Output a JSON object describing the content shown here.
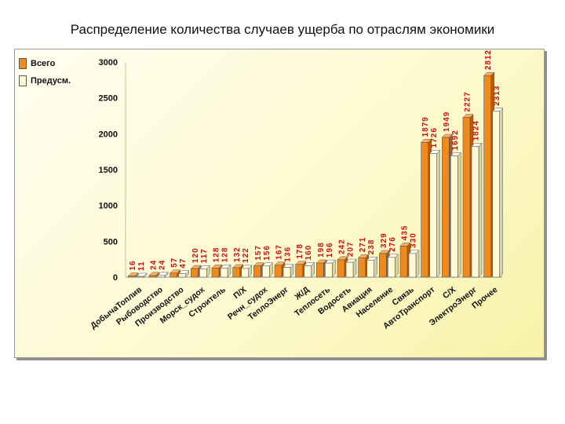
{
  "page_title": "Распределение количества случаев ущерба по отраслям экономики",
  "colors": {
    "series_total": "#f08a1c",
    "series_total_dark": "#b85a08",
    "series_planned": "#fffbd8",
    "label": "#cc1111",
    "axis": "#555555"
  },
  "chart_data": {
    "type": "bar",
    "title": "Распределение количества случаев ущерба по отраслям экономики",
    "xlabel": "",
    "ylabel": "",
    "ylim": [
      0,
      3000
    ],
    "yticks": [
      0,
      500,
      1000,
      1500,
      2000,
      2500,
      3000
    ],
    "grid": false,
    "legend": "top-left",
    "categories": [
      "ДобычаТоплив",
      "Рыбоводство",
      "Производство",
      "Морск_судох",
      "Строитель",
      "П/Х",
      "Речн_судох",
      "ТеплоЭнерг",
      "Ж/Д",
      "Теплосеть",
      "Водосеть",
      "Авиация",
      "Население",
      "Связь",
      "АвтоТранспорт",
      "С/Х",
      "ЭлектроЭнерг",
      "Прочее"
    ],
    "series": [
      {
        "name": "Всего",
        "values": [
          16,
          24,
          57,
          120,
          128,
          132,
          157,
          167,
          178,
          198,
          242,
          271,
          329,
          435,
          1879,
          1949,
          2227,
          2812
        ]
      },
      {
        "name": "Предусм.",
        "values": [
          11,
          24,
          47,
          117,
          128,
          122,
          156,
          136,
          160,
          196,
          207,
          238,
          276,
          330,
          1726,
          1692,
          1824,
          2313
        ]
      }
    ]
  }
}
